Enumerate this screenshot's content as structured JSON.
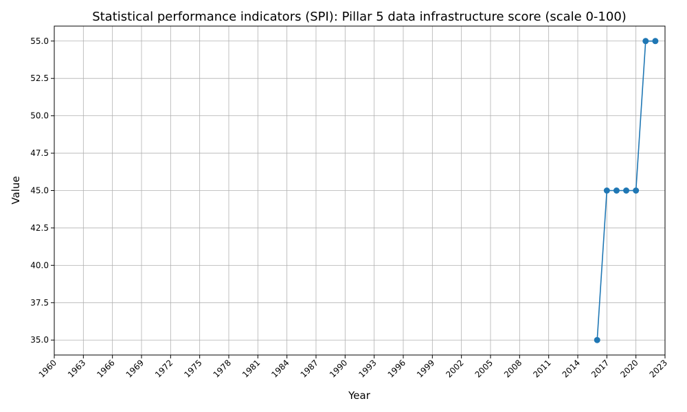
{
  "chart_data": {
    "type": "line",
    "title": "Statistical performance indicators (SPI): Pillar 5 data infrastructure score (scale 0-100)",
    "xlabel": "Year",
    "ylabel": "Value",
    "xlim": [
      1960,
      2023
    ],
    "ylim": [
      34,
      56
    ],
    "x_ticks": [
      1960,
      1963,
      1966,
      1969,
      1972,
      1975,
      1978,
      1981,
      1984,
      1987,
      1990,
      1993,
      1996,
      1999,
      2002,
      2005,
      2008,
      2011,
      2014,
      2017,
      2020,
      2023
    ],
    "y_ticks": [
      "35.0",
      "37.5",
      "40.0",
      "42.5",
      "45.0",
      "47.5",
      "50.0",
      "52.5",
      "55.0"
    ],
    "grid": true,
    "series": [
      {
        "color": "#1f77b4",
        "x": [
          2016,
          2017,
          2018,
          2019,
          2020,
          2021,
          2022
        ],
        "values": [
          35,
          45,
          45,
          45,
          45,
          55,
          55
        ]
      }
    ]
  }
}
